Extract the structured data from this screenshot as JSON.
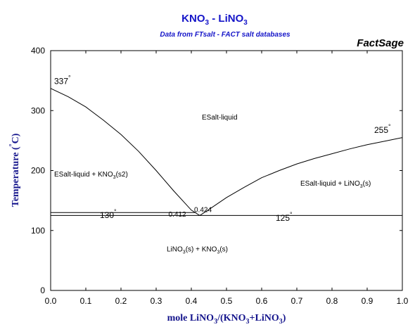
{
  "chart_data": {
    "type": "line",
    "title": "KNO3 - LiNO3",
    "title_parts": [
      "KNO",
      "3",
      " - LiNO",
      "3"
    ],
    "subtitle": "Data from FTsalt - FACT salt databases",
    "brand": "FactSage",
    "xlabel": "mole LiNO3/(KNO3+LiNO3)",
    "xlabel_parts": [
      "mole LiNO",
      "3",
      "/(KNO",
      "3",
      "+LiNO",
      "3",
      ")"
    ],
    "ylabel": "Temperature (°C)",
    "ylabel_parts": [
      "Temperature (",
      "°",
      "C)"
    ],
    "xlim": [
      0,
      1
    ],
    "ylim": [
      0,
      400
    ],
    "xticks": [
      0.0,
      0.1,
      0.2,
      0.3,
      0.4,
      0.5,
      0.6,
      0.7,
      0.8,
      0.9,
      1.0
    ],
    "xtick_labels": [
      "0.0",
      "0.1",
      "0.2",
      "0.3",
      "0.4",
      "0.5",
      "0.6",
      "0.7",
      "0.8",
      "0.9",
      "1.0"
    ],
    "yticks": [
      0,
      100,
      200,
      300,
      400
    ],
    "ytick_labels": [
      "0",
      "100",
      "200",
      "300",
      "400"
    ],
    "series": [
      {
        "x": [
          0.0,
          0.05,
          0.1,
          0.15,
          0.2,
          0.25,
          0.3,
          0.35,
          0.4,
          0.424
        ],
        "y": [
          337,
          323,
          306,
          284,
          260,
          232,
          200,
          166,
          134,
          125
        ]
      },
      {
        "x": [
          0.424,
          0.45,
          0.5,
          0.55,
          0.6,
          0.65,
          0.7,
          0.75,
          0.8,
          0.85,
          0.9,
          0.95,
          1.0
        ],
        "y": [
          125,
          135,
          155,
          172,
          188,
          200,
          211,
          220,
          228,
          236,
          243,
          249,
          255
        ]
      },
      {
        "x": [
          0.0,
          0.412
        ],
        "y": [
          130,
          130
        ]
      },
      {
        "x": [
          0.0,
          1.0
        ],
        "y": [
          125,
          125
        ]
      }
    ],
    "regions": [
      {
        "parts": [
          "ESalt-liquid"
        ],
        "x": 0.43,
        "y": 285
      },
      {
        "parts": [
          "ESalt-liquid + KNO",
          "3",
          "(s2)"
        ],
        "x": 0.01,
        "y": 190
      },
      {
        "parts": [
          "ESalt-liquid + LiNO",
          "3",
          "(s)"
        ],
        "x": 0.71,
        "y": 175
      },
      {
        "parts": [
          "LiNO",
          "3",
          "(s) + KNO",
          "3",
          "(s)"
        ],
        "x": 0.33,
        "y": 65
      }
    ],
    "annotations": [
      {
        "text": "337",
        "deg": "°",
        "x": 0.01,
        "y": 344,
        "size": "ann"
      },
      {
        "text": "255",
        "deg": "°",
        "x": 0.92,
        "y": 263,
        "size": "ann"
      },
      {
        "text": "130",
        "deg": "°",
        "x": 0.14,
        "y": 121,
        "size": "ann"
      },
      {
        "text": "125",
        "deg": "°",
        "x": 0.64,
        "y": 116,
        "size": "ann"
      },
      {
        "text": "0.412",
        "deg": "",
        "x": 0.335,
        "y": 123,
        "size": "ann-small"
      },
      {
        "text": "0.424",
        "deg": "",
        "x": 0.408,
        "y": 131,
        "size": "ann-small"
      }
    ]
  }
}
